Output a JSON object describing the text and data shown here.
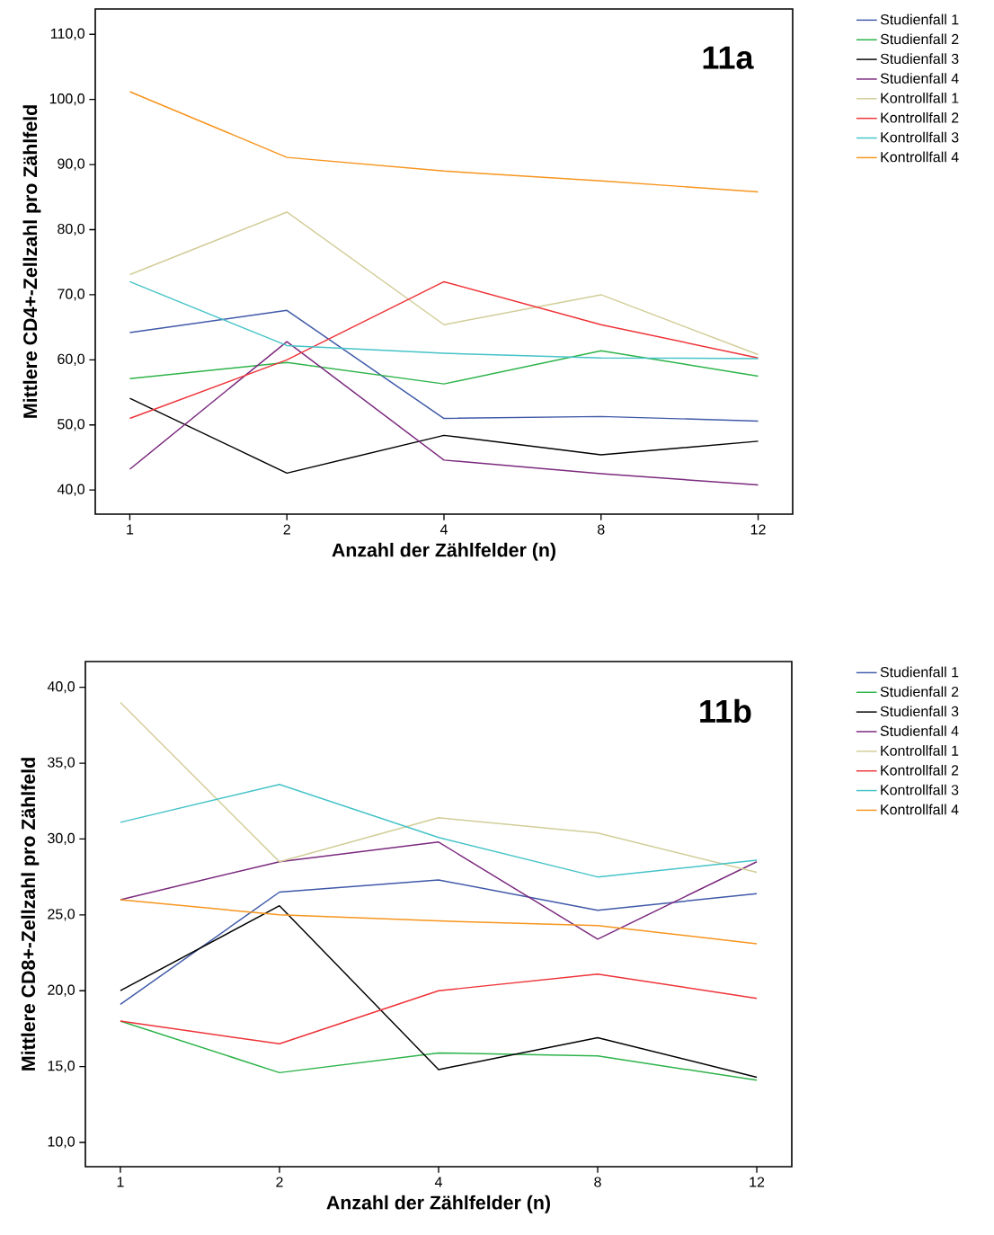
{
  "chart_data": [
    {
      "type": "line",
      "title": "11a",
      "xlabel": "Anzahl der Zählfelder (n)",
      "ylabel": "Mittlere CD4+-Zellzahl pro Zählfeld",
      "categories": [
        "1",
        "2",
        "4",
        "8",
        "12"
      ],
      "ylim": [
        36.3,
        113.9
      ],
      "yticks": [
        {
          "value": 40,
          "label": "40,0"
        },
        {
          "value": 50,
          "label": "50,0"
        },
        {
          "value": 60,
          "label": "60,0"
        },
        {
          "value": 70,
          "label": "70,0"
        },
        {
          "value": 80,
          "label": "80,0"
        },
        {
          "value": 90,
          "label": "90,0"
        },
        {
          "value": 100,
          "label": "100,0"
        },
        {
          "value": 110,
          "label": "110,0"
        }
      ],
      "legend": "right",
      "series": [
        {
          "name": "Studienfall 1",
          "color": "#3f59a8",
          "values": [
            64.2,
            67.6,
            51.0,
            51.3,
            50.6
          ]
        },
        {
          "name": "Studienfall 2",
          "color": "#2db34a",
          "values": [
            57.1,
            59.6,
            56.3,
            61.4,
            57.5
          ]
        },
        {
          "name": "Studienfall 3",
          "color": "#000000",
          "values": [
            54.1,
            42.6,
            48.4,
            45.4,
            47.5
          ]
        },
        {
          "name": "Studienfall 4",
          "color": "#7b2a7e",
          "values": [
            43.2,
            62.8,
            44.6,
            42.5,
            40.8
          ]
        },
        {
          "name": "Kontrollfall 1",
          "color": "#d2cd98",
          "values": [
            73.1,
            82.7,
            65.4,
            70.0,
            60.8
          ]
        },
        {
          "name": "Kontrollfall 2",
          "color": "#ee3338",
          "values": [
            51.0,
            60.0,
            72.0,
            65.4,
            60.3
          ]
        },
        {
          "name": "Kontrollfall 3",
          "color": "#45c3c8",
          "values": [
            72.0,
            62.2,
            61.0,
            60.3,
            60.2
          ]
        },
        {
          "name": "Kontrollfall 4",
          "color": "#f7951e",
          "values": [
            101.2,
            91.1,
            89.0,
            87.5,
            85.8
          ]
        }
      ]
    },
    {
      "type": "line",
      "title": "11b",
      "xlabel": "Anzahl der Zählfelder (n)",
      "ylabel": "Mittlere CD8+-Zellzahl pro Zählfeld",
      "categories": [
        "1",
        "2",
        "4",
        "8",
        "12"
      ],
      "ylim": [
        8.4,
        41.7
      ],
      "yticks": [
        {
          "value": 10,
          "label": "10,0"
        },
        {
          "value": 15,
          "label": "15,0"
        },
        {
          "value": 20,
          "label": "20,0"
        },
        {
          "value": 25,
          "label": "25,0"
        },
        {
          "value": 30,
          "label": "30,0"
        },
        {
          "value": 35,
          "label": "35,0"
        },
        {
          "value": 40,
          "label": "40,0"
        }
      ],
      "legend": "right",
      "series": [
        {
          "name": "Studienfall 1",
          "color": "#3f59a8",
          "values": [
            19.1,
            26.5,
            27.3,
            25.3,
            26.4
          ]
        },
        {
          "name": "Studienfall 2",
          "color": "#2db34a",
          "values": [
            18.0,
            14.6,
            15.9,
            15.7,
            14.1
          ]
        },
        {
          "name": "Studienfall 3",
          "color": "#000000",
          "values": [
            20.0,
            25.6,
            14.8,
            16.9,
            14.3
          ]
        },
        {
          "name": "Studienfall 4",
          "color": "#7b2a7e",
          "values": [
            26.0,
            28.5,
            29.8,
            23.4,
            28.5
          ]
        },
        {
          "name": "Kontrollfall 1",
          "color": "#d2cd98",
          "values": [
            39.0,
            28.5,
            31.4,
            30.4,
            27.8
          ]
        },
        {
          "name": "Kontrollfall 2",
          "color": "#ee3338",
          "values": [
            18.0,
            16.5,
            20.0,
            21.1,
            19.5
          ]
        },
        {
          "name": "Kontrollfall 3",
          "color": "#45c3c8",
          "values": [
            31.1,
            33.6,
            30.1,
            27.5,
            28.6
          ]
        },
        {
          "name": "Kontrollfall 4",
          "color": "#f7951e",
          "values": [
            26.0,
            25.0,
            24.6,
            24.3,
            23.1
          ]
        }
      ]
    }
  ]
}
